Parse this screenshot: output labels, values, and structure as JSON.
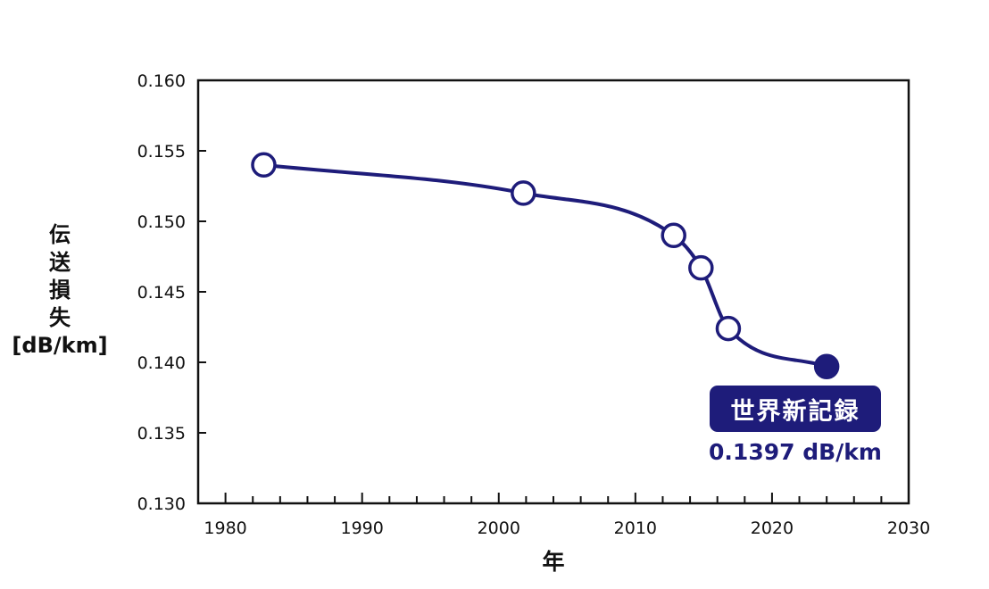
{
  "chart_data": {
    "type": "line",
    "title": "",
    "xlabel": "年",
    "ylabel_lines": [
      "伝",
      "送",
      "損",
      "失",
      "[dB/km]"
    ],
    "xlim": [
      1978,
      2030
    ],
    "ylim": [
      0.13,
      0.16
    ],
    "x_ticks": [
      1980,
      1990,
      2000,
      2010,
      2020,
      2030
    ],
    "y_ticks": [
      "0.130",
      "0.135",
      "0.140",
      "0.145",
      "0.150",
      "0.155",
      "0.160"
    ],
    "grid": false,
    "series": [
      {
        "name": "伝送損失",
        "color": "#1e1c7a",
        "points": [
          {
            "x": 1982.8,
            "y": 0.154,
            "marker": "open"
          },
          {
            "x": 2001.8,
            "y": 0.152,
            "marker": "open"
          },
          {
            "x": 2012.8,
            "y": 0.149,
            "marker": "open"
          },
          {
            "x": 2014.8,
            "y": 0.1467,
            "marker": "open"
          },
          {
            "x": 2016.8,
            "y": 0.1424,
            "marker": "open"
          },
          {
            "x": 2024.0,
            "y": 0.1397,
            "marker": "filled"
          }
        ]
      }
    ],
    "annotation": {
      "label": "世界新記録",
      "value_text": "0.1397 dB/km"
    }
  }
}
